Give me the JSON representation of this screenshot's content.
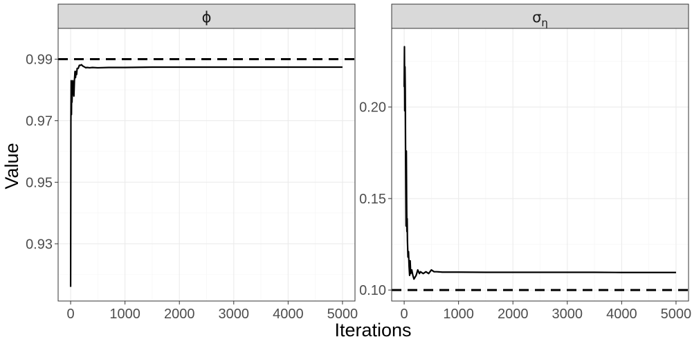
{
  "figure": {
    "xlabel": "Iterations",
    "ylabel": "Value"
  },
  "chart_data": [
    {
      "type": "line",
      "facet_label": "ϕ",
      "facet_sub": "",
      "xlim": [
        -230,
        5230
      ],
      "ylim": [
        0.9114,
        1.0
      ],
      "xticks": [
        0,
        1000,
        2000,
        3000,
        4000,
        5000
      ],
      "xtick_labels": [
        "0",
        "1000",
        "2000",
        "3000",
        "4000",
        "5000"
      ],
      "yticks": [
        0.93,
        0.95,
        0.97,
        0.99
      ],
      "ytick_labels": [
        "0.93",
        "0.95",
        "0.97",
        "0.99"
      ],
      "reference_line": {
        "y": 0.99,
        "style": "dashed"
      },
      "series": [
        {
          "x": [
            0,
            5,
            10,
            15,
            20,
            25,
            30,
            40,
            50,
            60,
            70,
            80,
            90,
            100,
            110,
            120,
            140,
            160,
            180,
            200,
            220,
            250,
            280,
            300,
            350,
            400,
            500,
            700,
            1000,
            1500,
            2000,
            2500,
            3000,
            3500,
            4000,
            4500,
            5000
          ],
          "y": [
            0.916,
            0.97,
            0.983,
            0.972,
            0.982,
            0.976,
            0.979,
            0.983,
            0.98,
            0.978,
            0.983,
            0.986,
            0.984,
            0.986,
            0.985,
            0.987,
            0.987,
            0.988,
            0.988,
            0.9882,
            0.9878,
            0.9875,
            0.9872,
            0.9873,
            0.9872,
            0.9873,
            0.9872,
            0.9873,
            0.9873,
            0.9874,
            0.9874,
            0.9874,
            0.9874,
            0.9874,
            0.9874,
            0.9874,
            0.9874
          ]
        }
      ],
      "grid": true
    },
    {
      "type": "line",
      "facet_label": "σ",
      "facet_sub": "η",
      "xlim": [
        -230,
        5230
      ],
      "ylim": [
        0.094,
        0.243
      ],
      "xticks": [
        0,
        1000,
        2000,
        3000,
        4000,
        5000
      ],
      "xtick_labels": [
        "0",
        "1000",
        "2000",
        "3000",
        "4000",
        "5000"
      ],
      "yticks": [
        0.1,
        0.15,
        0.2
      ],
      "ytick_labels": [
        "0.10",
        "0.15",
        "0.20"
      ],
      "reference_line": {
        "y": 0.1,
        "style": "dashed"
      },
      "series": [
        {
          "x": [
            0,
            5,
            10,
            15,
            20,
            25,
            30,
            35,
            40,
            45,
            50,
            55,
            60,
            70,
            80,
            90,
            100,
            110,
            120,
            140,
            160,
            180,
            200,
            220,
            250,
            280,
            300,
            350,
            400,
            450,
            500,
            550,
            600,
            700,
            800,
            1000,
            1500,
            2000,
            2500,
            3000,
            3500,
            4000,
            4500,
            5000
          ],
          "y": [
            0.211,
            0.233,
            0.198,
            0.222,
            0.209,
            0.179,
            0.155,
            0.135,
            0.176,
            0.15,
            0.132,
            0.139,
            0.127,
            0.118,
            0.121,
            0.113,
            0.108,
            0.116,
            0.109,
            0.111,
            0.108,
            0.106,
            0.107,
            0.108,
            0.111,
            0.109,
            0.11,
            0.109,
            0.11,
            0.109,
            0.111,
            0.11,
            0.11,
            0.1098,
            0.1098,
            0.1098,
            0.1097,
            0.1097,
            0.1097,
            0.1097,
            0.1097,
            0.1096,
            0.1096,
            0.1096
          ]
        }
      ],
      "grid": true
    }
  ]
}
